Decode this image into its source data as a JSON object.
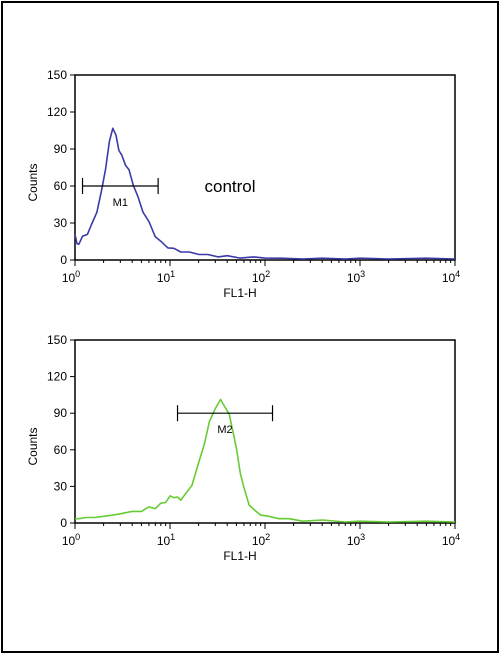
{
  "chart_data": [
    {
      "type": "line",
      "xscale": "log",
      "xlim": [
        1,
        10000
      ],
      "ylim": [
        0,
        150
      ],
      "xticks": [
        {
          "value": 1,
          "base": "10",
          "exp": "0"
        },
        {
          "value": 10,
          "base": "10",
          "exp": "1"
        },
        {
          "value": 100,
          "base": "10",
          "exp": "2"
        },
        {
          "value": 1000,
          "base": "10",
          "exp": "3"
        },
        {
          "value": 10000,
          "base": "10",
          "exp": "4"
        }
      ],
      "yticks": [
        "0",
        "30",
        "60",
        "90",
        "120",
        "150"
      ],
      "xlabel": "FL1-H",
      "ylabel": "Counts",
      "color": "#3a3aa8",
      "series": [
        {
          "x": [
            1,
            1.05,
            1.1,
            1.2,
            1.35,
            1.5,
            1.7,
            1.9,
            2.1,
            2.3,
            2.5,
            2.7,
            2.9,
            3.1,
            3.4,
            3.7,
            4.1,
            4.6,
            5.2,
            6,
            7,
            8,
            9.5,
            11,
            13,
            16,
            20,
            25,
            32,
            40,
            55,
            75,
            100,
            150,
            250,
            400,
            700,
            1000,
            2000,
            5000,
            10000
          ],
          "y": [
            22,
            12,
            14,
            18,
            22,
            28,
            40,
            55,
            75,
            95,
            108,
            100,
            90,
            84,
            78,
            72,
            62,
            50,
            40,
            30,
            20,
            14,
            11,
            9,
            7,
            6,
            5,
            4,
            3,
            3,
            2,
            2,
            2,
            1,
            1,
            1,
            1,
            1,
            1,
            1,
            1
          ]
        }
      ],
      "gate": {
        "label": "M1",
        "x_start": 1.2,
        "x_end": 7.5,
        "y": 60
      },
      "annotation": "control"
    },
    {
      "type": "line",
      "xscale": "log",
      "xlim": [
        1,
        10000
      ],
      "ylim": [
        0,
        150
      ],
      "xticks": [
        {
          "value": 1,
          "base": "10",
          "exp": "0"
        },
        {
          "value": 10,
          "base": "10",
          "exp": "1"
        },
        {
          "value": 100,
          "base": "10",
          "exp": "2"
        },
        {
          "value": 1000,
          "base": "10",
          "exp": "3"
        },
        {
          "value": 10000,
          "base": "10",
          "exp": "4"
        }
      ],
      "yticks": [
        "0",
        "30",
        "60",
        "90",
        "120",
        "150"
      ],
      "xlabel": "FL1-H",
      "ylabel": "Counts",
      "color": "#66cc33",
      "series": [
        {
          "x": [
            1,
            1.1,
            1.3,
            1.6,
            2,
            2.5,
            3,
            4,
            5,
            6,
            7,
            8,
            9,
            10,
            11,
            12,
            13,
            15,
            17,
            20,
            23,
            26,
            30,
            34,
            38,
            42,
            46,
            50,
            55,
            60,
            68,
            78,
            90,
            110,
            140,
            180,
            250,
            400,
            700,
            1000,
            2000,
            5000,
            10000
          ],
          "y": [
            4,
            3,
            5,
            4,
            6,
            6,
            8,
            9,
            10,
            12,
            13,
            15,
            18,
            21,
            22,
            20,
            20,
            24,
            32,
            48,
            66,
            82,
            95,
            100,
            96,
            88,
            76,
            60,
            42,
            28,
            16,
            10,
            7,
            5,
            4,
            3,
            2,
            2,
            1,
            1,
            1,
            1,
            1
          ]
        }
      ],
      "gate": {
        "label": "M2",
        "x_start": 12,
        "x_end": 120,
        "y": 90
      }
    }
  ]
}
